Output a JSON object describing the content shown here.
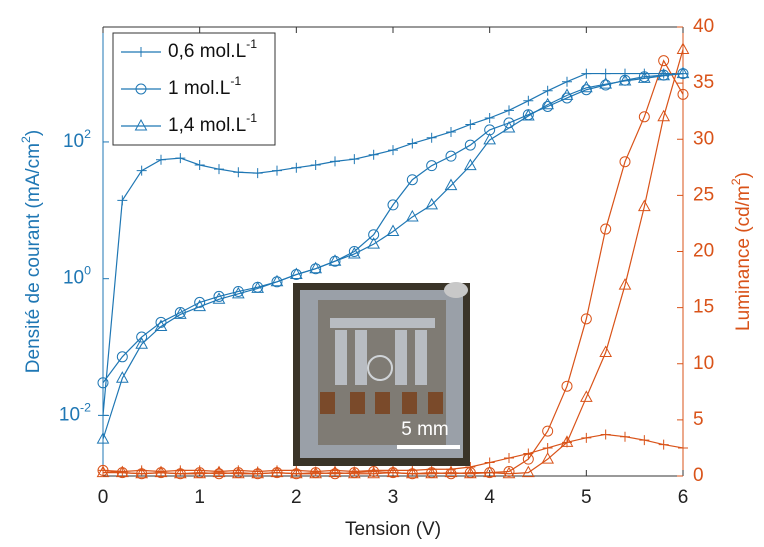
{
  "chart_data": {
    "type": "line",
    "x_label": "Tension (V)",
    "y_label": "Densité de courant (mA/cm^2)",
    "y2_label": "Luminance (cd/m^2)",
    "color": "#1f77b4",
    "y2_color": "#d95319",
    "y_log": true,
    "xlim": [
      0,
      6
    ],
    "xticks": [
      0,
      1,
      2,
      3,
      4,
      5,
      6
    ],
    "ylim": [
      0.0013,
      4800
    ],
    "yticks": [
      {
        "value": 0.01,
        "label": "10^-2"
      },
      {
        "value": 1,
        "label": "10^0"
      },
      {
        "value": 100,
        "label": "10^2"
      }
    ],
    "y2lim": [
      0,
      40
    ],
    "y2ticks": [
      0,
      5,
      10,
      15,
      20,
      25,
      30,
      35,
      40
    ],
    "legend": "upper left",
    "annotations": [
      "5 mm"
    ],
    "x": [
      0,
      0.2,
      0.4,
      0.6,
      0.8,
      1.0,
      1.2,
      1.4,
      1.6,
      1.8,
      2.0,
      2.2,
      2.4,
      2.6,
      2.8,
      3.0,
      3.2,
      3.4,
      3.6,
      3.8,
      4.0,
      4.2,
      4.4,
      4.6,
      4.8,
      5.0,
      5.2,
      5.4,
      5.6,
      5.8,
      6.0
    ],
    "series": [
      {
        "name": "0,6 mol.L^-1",
        "marker": "plus",
        "values": [
          0.01,
          14,
          38,
          55,
          58,
          46,
          40,
          36,
          35,
          38,
          42,
          46,
          52,
          56,
          65,
          76,
          95,
          115,
          140,
          180,
          224,
          290,
          400,
          560,
          760,
          1000,
          1000,
          1000,
          1000,
          1000,
          1000
        ],
        "luminance": [
          0.5,
          0.4,
          0.5,
          0.4,
          0.5,
          0.5,
          0.4,
          0.5,
          0.4,
          0.5,
          0.5,
          0.4,
          0.5,
          0.4,
          0.5,
          0.5,
          0.5,
          0.6,
          0.6,
          0.8,
          1.2,
          1.6,
          2,
          2.5,
          3,
          3.4,
          3.7,
          3.5,
          3.2,
          2.8,
          2.5
        ]
      },
      {
        "name": "1 mol.L^-1",
        "marker": "circle",
        "values": [
          0.03,
          0.072,
          0.14,
          0.23,
          0.32,
          0.45,
          0.55,
          0.65,
          0.75,
          0.9,
          1.15,
          1.4,
          1.8,
          2.5,
          4.4,
          12,
          28,
          45,
          62,
          90,
          150,
          190,
          250,
          330,
          440,
          580,
          680,
          800,
          900,
          950,
          1000
        ],
        "luminance": [
          0.5,
          0.3,
          0.2,
          0.3,
          0.2,
          0.3,
          0.2,
          0.3,
          0.2,
          0.3,
          0.2,
          0.3,
          0.2,
          0.3,
          0.4,
          0.3,
          0.2,
          0.3,
          0.2,
          0.3,
          0.3,
          0.4,
          1.5,
          4,
          8,
          14,
          22,
          28,
          32,
          37,
          34
        ]
      },
      {
        "name": "1,4 mol.L^-1",
        "marker": "triangle",
        "values": [
          0.0045,
          0.035,
          0.11,
          0.2,
          0.3,
          0.39,
          0.5,
          0.6,
          0.72,
          0.9,
          1.15,
          1.4,
          1.8,
          2.3,
          3.2,
          4.9,
          8,
          12,
          23,
          45,
          107,
          160,
          240,
          350,
          480,
          620,
          700,
          780,
          850,
          930,
          1000
        ],
        "luminance": [
          0.3,
          0.3,
          0.2,
          0.3,
          0.2,
          0.2,
          0.3,
          0.2,
          0.2,
          0.3,
          0.2,
          0.2,
          0.3,
          0.2,
          0.2,
          0.3,
          0.2,
          0.2,
          0.3,
          0.2,
          0.3,
          0.2,
          0.3,
          1.5,
          3,
          7,
          11,
          17,
          24,
          32,
          38
        ]
      }
    ]
  }
}
